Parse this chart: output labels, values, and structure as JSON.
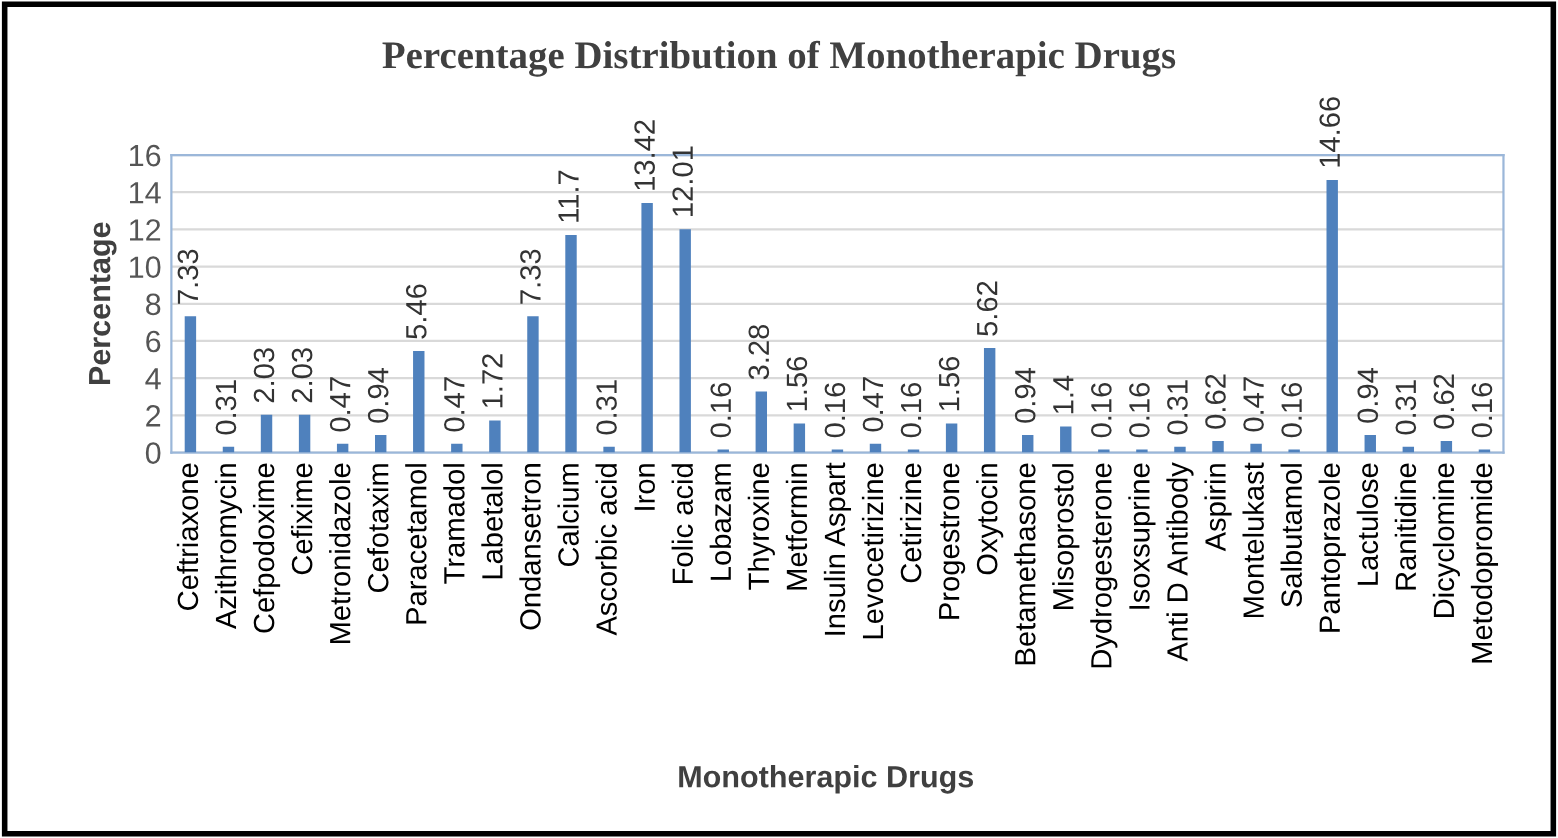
{
  "chart_data": {
    "type": "bar",
    "title": "Percentage Distribution of Monotherapic Drugs",
    "xlabel": "Monotherapic Drugs",
    "ylabel": "Percentage",
    "categories": [
      "Ceftriaxone",
      "Azithromycin",
      "Cefpodoxime",
      "Cefixime",
      "Metronidazole",
      "Cefotaxim",
      "Paracetamol",
      "Tramadol",
      "Labetalol",
      "Ondansetron",
      "Calcium",
      "Ascorbic acid",
      "Iron",
      "Folic acid",
      "Lobazam",
      "Thyroxine",
      "Metformin",
      "Insulin Aspart",
      "Levocetirizine",
      "Cetirizine",
      "Progestrone",
      "Oxytocin",
      "Betamethasone",
      "Misoprostol",
      "Dydrogesterone",
      "Isoxsuprine",
      "Anti D Antibody",
      "Aspirin",
      "Montelukast",
      "Salbutamol",
      "Pantoprazole",
      "Lactulose",
      "Ranitidine",
      "Dicyclomine",
      "Metodopromide"
    ],
    "values": [
      7.33,
      0.31,
      2.03,
      2.03,
      0.47,
      0.94,
      5.46,
      0.47,
      1.72,
      7.33,
      11.7,
      0.31,
      13.42,
      12.01,
      0.16,
      3.28,
      1.56,
      0.16,
      0.47,
      0.16,
      1.56,
      5.62,
      0.94,
      1.4,
      0.16,
      0.16,
      0.31,
      0.62,
      0.47,
      0.16,
      14.66,
      0.94,
      0.31,
      0.62,
      0.16
    ],
    "color": "#4f81bd",
    "ylim": [
      0,
      16
    ],
    "yticks": [
      0,
      2,
      4,
      6,
      8,
      10,
      12,
      14,
      16
    ],
    "grid": "y",
    "data_labels": true
  }
}
